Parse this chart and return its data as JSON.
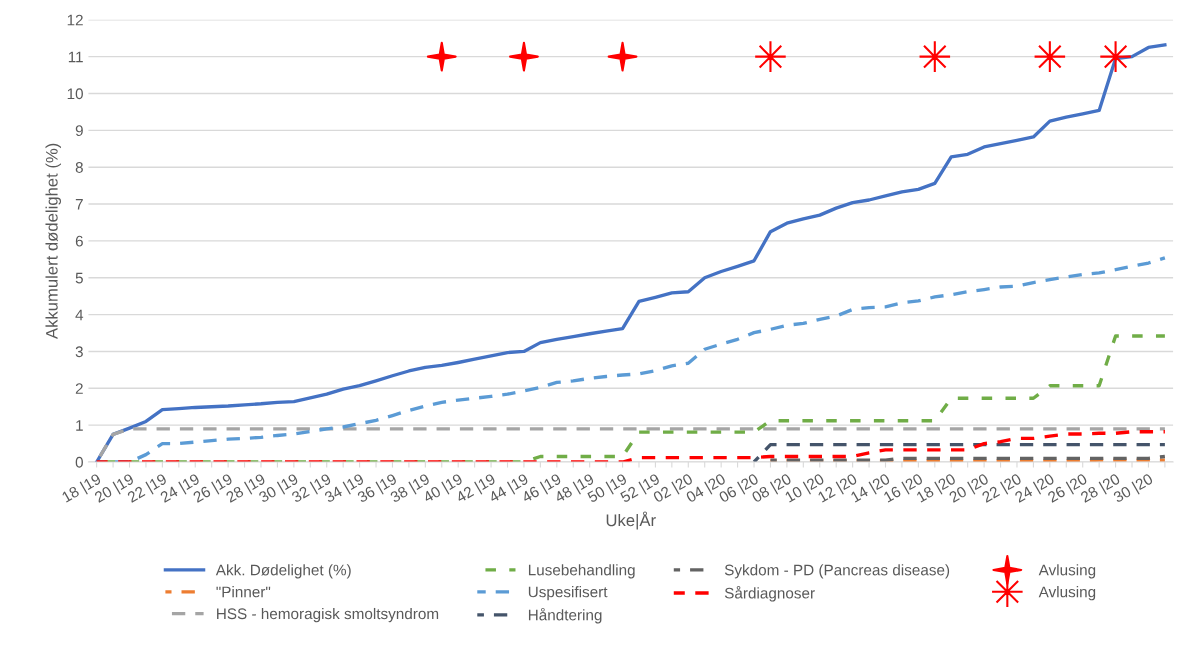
{
  "chart_data": {
    "type": "line",
    "xlabel": "Uke|År",
    "ylabel": "Akkumulert dødelighet (%)",
    "categories": [
      "18 |19",
      null,
      "20 |19",
      null,
      "22 |19",
      null,
      "24 |19",
      null,
      "26 |19",
      null,
      "28 |19",
      null,
      "30 |19",
      null,
      "32 |19",
      null,
      "34 |19",
      null,
      "36 |19",
      null,
      "38 |19",
      null,
      "40 |19",
      null,
      "42 |19",
      null,
      "44 |19",
      null,
      "46 |19",
      null,
      "48 |19",
      null,
      "50 |19",
      null,
      "52 |19",
      null,
      "02 |20",
      null,
      "04 |20",
      null,
      "06 |20",
      null,
      "08 |20",
      null,
      "10 |20",
      null,
      "12 |20",
      null,
      "14 |20",
      null,
      "16 |20",
      null,
      "18 |20",
      null,
      "20 |20",
      null,
      "22 |20",
      null,
      "24 |20",
      null,
      "26 |20",
      null,
      "28 |20",
      null,
      "30 |20",
      null
    ],
    "ylim": [
      0,
      12
    ],
    "yticks": [
      0,
      1,
      2,
      3,
      4,
      5,
      6,
      7,
      8,
      9,
      10,
      11,
      12
    ],
    "grid": "y",
    "legend": "bottom",
    "series": [
      {
        "name": "Akk. Dødelighet (%)",
        "color": "#4472c4",
        "line_style": "solid",
        "values": [
          0,
          0.75,
          0.92,
          1.1,
          1.42,
          1.45,
          1.48,
          1.5,
          1.52,
          1.55,
          1.58,
          1.62,
          1.64,
          1.74,
          1.84,
          1.98,
          2.07,
          2.2,
          2.34,
          2.47,
          2.57,
          2.62,
          2.7,
          2.79,
          2.88,
          2.97,
          3.0,
          3.24,
          3.33,
          3.4,
          3.48,
          3.55,
          3.62,
          4.36,
          4.47,
          4.59,
          4.62,
          5.0,
          5.17,
          5.31,
          5.46,
          6.25,
          6.48,
          6.6,
          6.7,
          6.89,
          7.04,
          7.11,
          7.22,
          7.33,
          7.4,
          7.56,
          8.28,
          8.35,
          8.55,
          8.64,
          8.73,
          8.82,
          9.25,
          9.36,
          9.45,
          9.54,
          10.95,
          11.0,
          11.25,
          11.32
        ]
      },
      {
        "name": "\"Pinner\"",
        "color": "#ed7d31",
        "line_style": "dashed",
        "values": [
          null,
          null,
          null,
          null,
          null,
          null,
          null,
          null,
          null,
          null,
          null,
          null,
          null,
          null,
          null,
          null,
          null,
          null,
          null,
          null,
          null,
          null,
          null,
          null,
          null,
          null,
          null,
          null,
          null,
          null,
          null,
          null,
          null,
          null,
          null,
          null,
          null,
          null,
          null,
          null,
          null,
          0.03,
          0.03,
          0.03,
          0.03,
          0.03,
          0.03,
          0.03,
          0.03,
          0.03,
          0.03,
          0.03,
          0.03,
          0.03,
          0.03,
          0.03,
          0.03,
          0.03,
          0.03,
          0.03,
          0.03,
          0.05,
          0.05,
          0.05,
          0.05,
          0.05
        ]
      },
      {
        "name": "HSS - hemoragisk smoltsyndrom",
        "color": "#a5a5a5",
        "line_style": "dashed",
        "values": [
          0,
          0.75,
          0.9,
          0.9,
          0.9,
          0.9,
          0.9,
          0.9,
          0.9,
          0.9,
          0.9,
          0.9,
          0.9,
          0.9,
          0.9,
          0.9,
          0.9,
          0.9,
          0.9,
          0.9,
          0.9,
          0.9,
          0.9,
          0.9,
          0.9,
          0.9,
          0.9,
          0.9,
          0.9,
          0.9,
          0.9,
          0.9,
          0.9,
          0.9,
          0.9,
          0.9,
          0.9,
          0.9,
          0.9,
          0.9,
          0.9,
          0.9,
          0.9,
          0.9,
          0.9,
          0.9,
          0.9,
          0.9,
          0.9,
          0.9,
          0.9,
          0.9,
          0.9,
          0.9,
          0.9,
          0.9,
          0.9,
          0.9,
          0.9,
          0.9,
          0.9,
          0.9,
          0.9,
          0.9,
          0.9,
          0.9
        ]
      },
      {
        "name": "Lusebehandling",
        "color": "#70ad47",
        "line_style": "dashed",
        "values": [
          0,
          0,
          0,
          0,
          0,
          0,
          0,
          0,
          0,
          0,
          0,
          0,
          0,
          0,
          0,
          0,
          0,
          0,
          0,
          0,
          0,
          0,
          0,
          0,
          0,
          0,
          0,
          0.15,
          0.15,
          0.15,
          0.15,
          0.15,
          0.15,
          0.81,
          0.81,
          0.81,
          0.81,
          0.81,
          0.81,
          0.81,
          0.81,
          1.12,
          1.12,
          1.12,
          1.12,
          1.12,
          1.12,
          1.12,
          1.12,
          1.12,
          1.12,
          1.12,
          1.73,
          1.73,
          1.73,
          1.73,
          1.73,
          1.73,
          2.07,
          2.07,
          2.07,
          2.07,
          3.42,
          3.42,
          3.42,
          3.42
        ]
      },
      {
        "name": "Uspesifisert",
        "color": "#5b9bd5",
        "line_style": "dashed",
        "values": [
          0,
          0,
          0,
          0.2,
          0.5,
          0.5,
          0.54,
          0.58,
          0.62,
          0.64,
          0.67,
          0.72,
          0.76,
          0.83,
          0.9,
          0.95,
          1.04,
          1.13,
          1.26,
          1.4,
          1.52,
          1.62,
          1.68,
          1.73,
          1.78,
          1.84,
          1.93,
          2.02,
          2.16,
          2.2,
          2.27,
          2.32,
          2.36,
          2.39,
          2.48,
          2.61,
          2.68,
          3.06,
          3.2,
          3.33,
          3.51,
          3.6,
          3.71,
          3.76,
          3.87,
          3.96,
          4.14,
          4.19,
          4.21,
          4.32,
          4.37,
          4.48,
          4.54,
          4.62,
          4.68,
          4.75,
          4.77,
          4.87,
          4.95,
          5.02,
          5.09,
          5.13,
          5.22,
          5.31,
          5.4,
          5.54
        ]
      },
      {
        "name": "Håndtering",
        "color": "#44546a",
        "line_style": "dashed",
        "values": [
          null,
          null,
          null,
          null,
          null,
          null,
          null,
          null,
          null,
          null,
          null,
          null,
          null,
          null,
          null,
          null,
          null,
          null,
          null,
          null,
          null,
          null,
          null,
          null,
          null,
          null,
          null,
          null,
          null,
          null,
          null,
          null,
          null,
          null,
          null,
          null,
          null,
          null,
          null,
          null,
          0,
          0.47,
          0.47,
          0.47,
          0.47,
          0.47,
          0.47,
          0.47,
          0.47,
          0.47,
          0.47,
          0.47,
          0.47,
          0.47,
          0.47,
          0.47,
          0.47,
          0.47,
          0.47,
          0.47,
          0.47,
          0.47,
          0.47,
          0.47,
          0.47,
          0.47
        ]
      },
      {
        "name": "Sykdom - PD (Pancreas disease)",
        "color": "#636363",
        "line_style": "dashed",
        "values": [
          null,
          null,
          null,
          null,
          null,
          null,
          null,
          null,
          null,
          null,
          null,
          null,
          null,
          null,
          null,
          null,
          null,
          null,
          null,
          null,
          null,
          null,
          null,
          null,
          null,
          null,
          null,
          null,
          null,
          null,
          null,
          null,
          null,
          null,
          null,
          null,
          null,
          null,
          null,
          null,
          null,
          0.05,
          0.05,
          0.05,
          0.05,
          0.05,
          0.05,
          0.05,
          0.05,
          0.1,
          0.1,
          0.1,
          0.1,
          0.1,
          0.1,
          0.1,
          0.1,
          0.1,
          0.1,
          0.1,
          0.1,
          0.1,
          0.1,
          0.1,
          0.1,
          0.15
        ]
      },
      {
        "name": "Sårdiagnoser",
        "color": "#ff0000",
        "line_style": "dashed",
        "values": [
          0,
          0,
          0,
          0,
          0,
          0,
          0,
          0,
          0,
          0,
          0,
          0,
          0,
          0,
          0,
          0,
          0,
          0,
          0,
          0,
          0,
          0,
          0,
          0,
          0,
          0,
          0,
          0,
          0,
          0,
          0,
          0,
          0,
          0.12,
          0.12,
          0.12,
          0.12,
          0.12,
          0.12,
          0.12,
          0.12,
          0.15,
          0.15,
          0.15,
          0.15,
          0.15,
          0.15,
          0.25,
          0.33,
          0.33,
          0.33,
          0.33,
          0.33,
          0.33,
          0.5,
          0.55,
          0.64,
          0.64,
          0.7,
          0.76,
          0.76,
          0.78,
          0.78,
          0.82,
          0.82,
          0.82
        ]
      },
      {
        "name": "Avlusing",
        "type": "scatter",
        "marker": "star",
        "color": "#ff0000",
        "values": [
          null,
          null,
          null,
          null,
          null,
          null,
          null,
          null,
          null,
          null,
          null,
          null,
          null,
          null,
          null,
          null,
          null,
          null,
          null,
          null,
          null,
          11,
          null,
          null,
          null,
          null,
          11,
          null,
          null,
          null,
          null,
          null,
          11,
          null,
          null,
          null,
          null,
          null,
          null,
          null,
          null,
          null,
          null,
          null,
          null,
          null,
          null,
          null,
          null,
          null,
          null,
          null,
          null,
          null,
          null,
          null,
          null,
          null,
          null,
          null,
          null,
          null,
          null,
          null,
          null,
          null
        ]
      },
      {
        "name": "Avlusing",
        "type": "scatter",
        "marker": "cross",
        "color": "#ff0000",
        "values": [
          null,
          null,
          null,
          null,
          null,
          null,
          null,
          null,
          null,
          null,
          null,
          null,
          null,
          null,
          null,
          null,
          null,
          null,
          null,
          null,
          null,
          null,
          null,
          null,
          null,
          null,
          null,
          null,
          null,
          null,
          null,
          null,
          null,
          null,
          null,
          null,
          null,
          null,
          null,
          null,
          null,
          11,
          null,
          null,
          null,
          null,
          null,
          null,
          null,
          null,
          null,
          11,
          null,
          null,
          null,
          null,
          null,
          null,
          11,
          null,
          null,
          null,
          11,
          null,
          null,
          null
        ]
      }
    ]
  }
}
